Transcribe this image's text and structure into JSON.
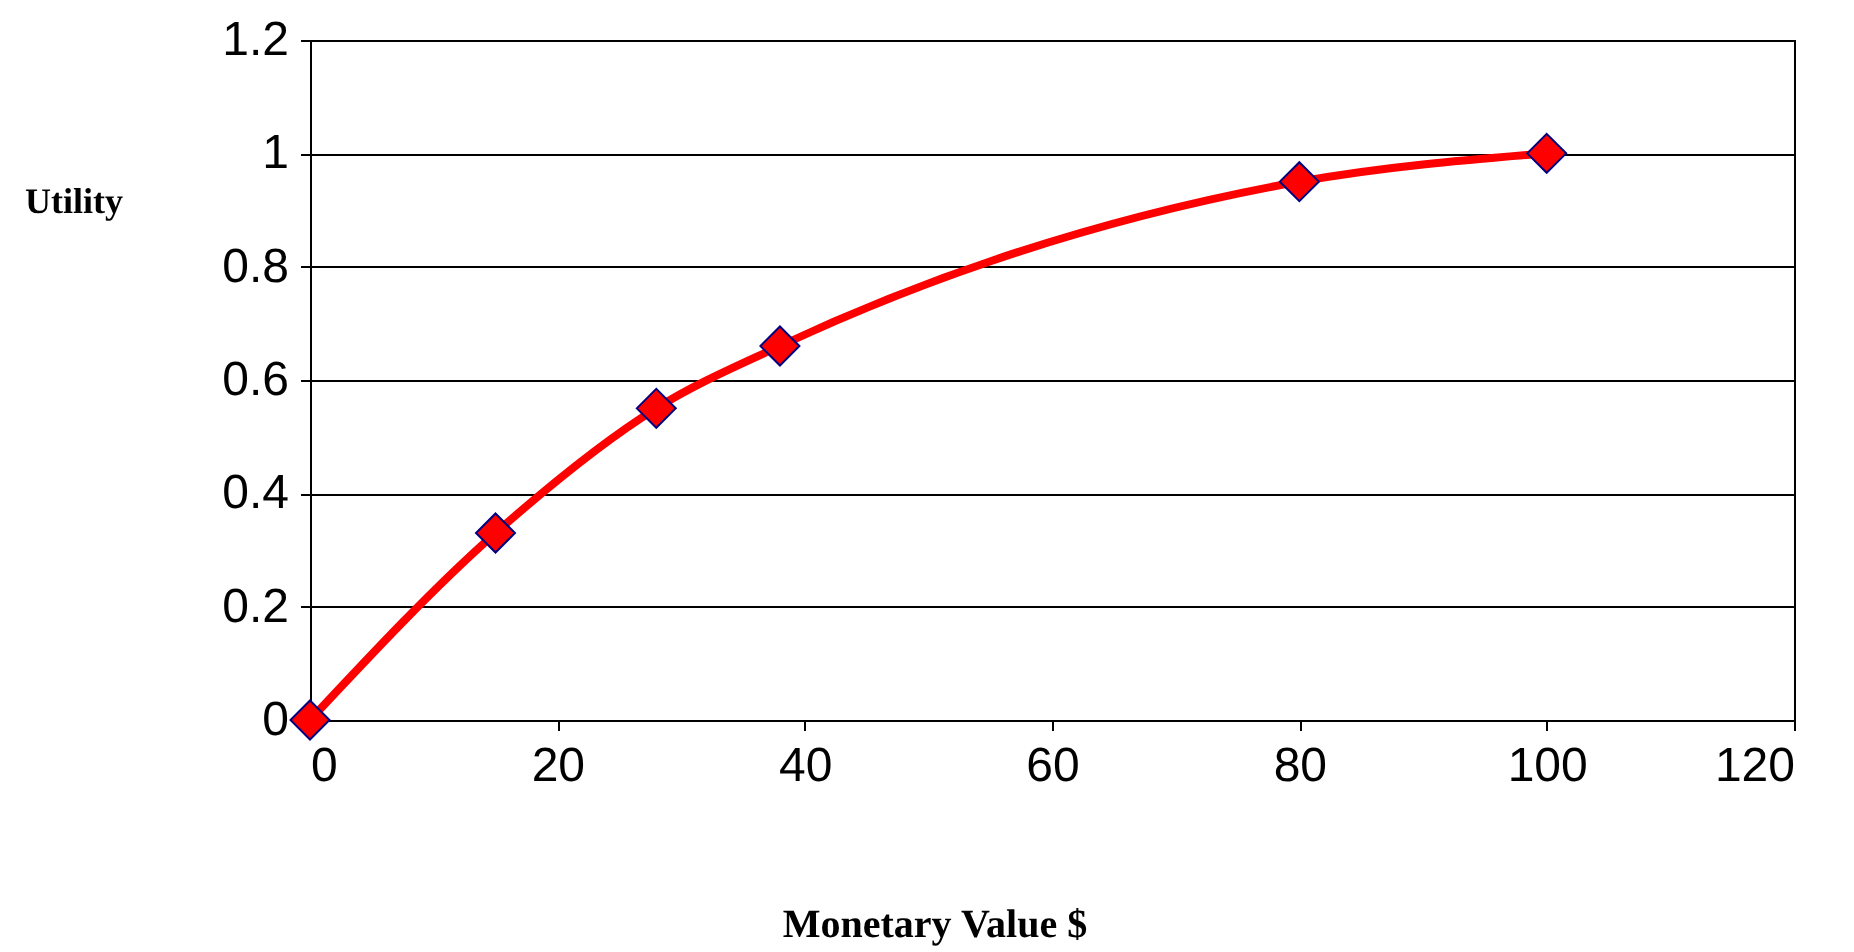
{
  "chart_data": {
    "type": "line",
    "xlabel": "Monetary Value  $",
    "ylabel": "Utility",
    "x": [
      0,
      15,
      28,
      38,
      80,
      100
    ],
    "series": [
      {
        "color": "#ff0000",
        "values": [
          0,
          0.33,
          0.55,
          0.66,
          0.95,
          1.0
        ]
      }
    ],
    "xlim": [
      0,
      120
    ],
    "xticks": [
      0,
      20,
      40,
      60,
      80,
      100,
      120
    ],
    "ylim": [
      0,
      1.2
    ],
    "yticks": [
      0,
      0.2,
      0.4,
      0.6,
      0.8,
      1,
      1.2
    ],
    "grid": "y",
    "marker": "diamond",
    "line_style": "solid"
  }
}
